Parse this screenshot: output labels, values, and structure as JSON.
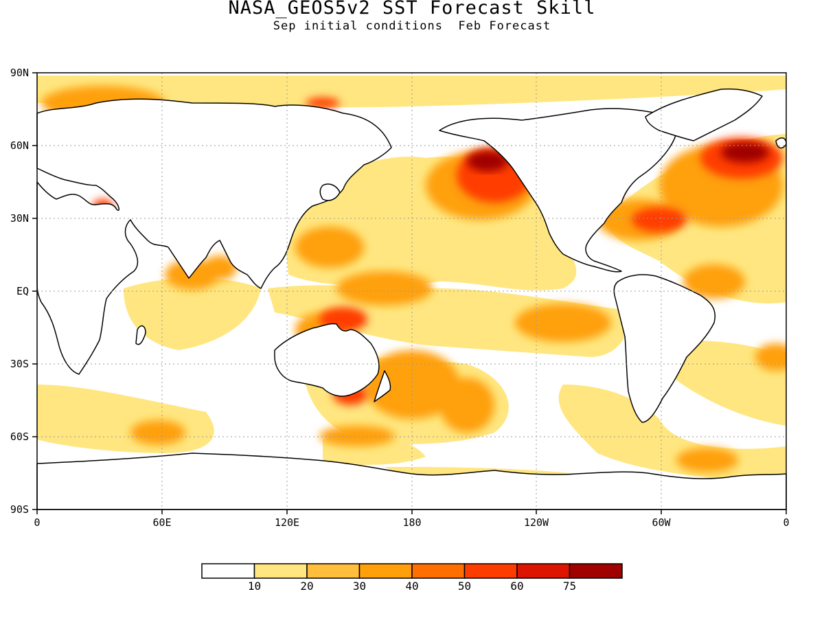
{
  "title": "NASA_GEOS5v2 SST Forecast Skill",
  "subtitle": "Sep initial conditions  Feb Forecast",
  "map": {
    "lat_labels": [
      "90N",
      "60N",
      "30N",
      "EQ",
      "30S",
      "60S",
      "90S"
    ],
    "lon_labels": [
      "0",
      "60E",
      "120E",
      "180",
      "120W",
      "60W",
      "0"
    ],
    "grid": "dotted",
    "projection": "cylindrical equidistant, 0 to 360 E",
    "land_color": "#ffffff",
    "coastline_color": "#000000"
  },
  "colorbar": {
    "colors": [
      "#ffffff",
      "#ffe680",
      "#ffbe3c",
      "#ffa00a",
      "#ff6e00",
      "#ff3c00",
      "#dc1400",
      "#a00000"
    ],
    "labels": [
      "10",
      "20",
      "30",
      "40",
      "50",
      "60",
      "75"
    ]
  }
}
